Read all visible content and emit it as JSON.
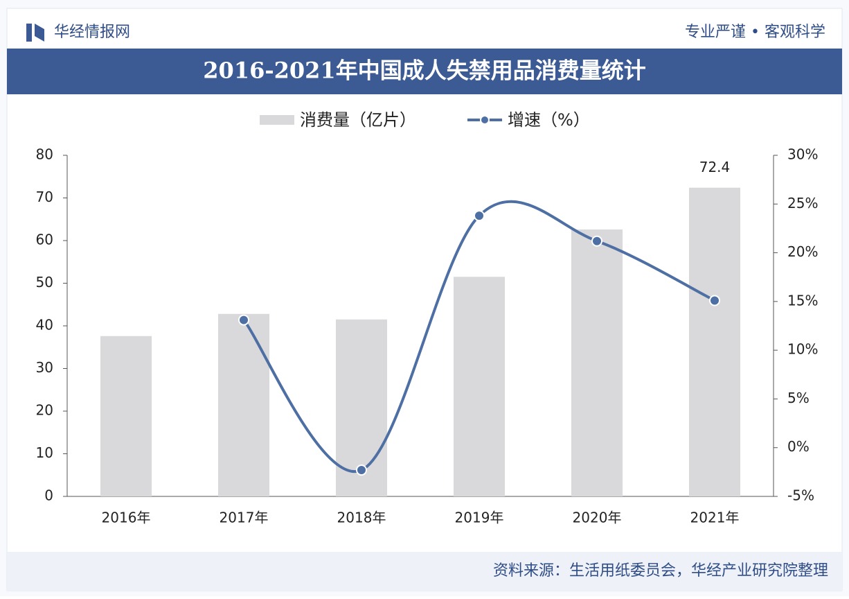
{
  "brand": "华经情报网",
  "slogan": "专业严谨 • 客观科学",
  "source": "资料来源：生活用纸委员会，华经产业研究院整理",
  "chart_data": {
    "type": "bar-line",
    "title": "2016-2021年中国成人失禁用品消费量统计",
    "categories": [
      "2016年",
      "2017年",
      "2018年",
      "2019年",
      "2020年",
      "2021年"
    ],
    "series": [
      {
        "name": "消费量（亿片）",
        "type": "bar",
        "color": "#d9d9db",
        "values": [
          37.6,
          42.8,
          41.5,
          51.5,
          62.6,
          72.4
        ],
        "value_labels": [
          null,
          null,
          null,
          null,
          null,
          "72.4"
        ]
      },
      {
        "name": "增速（%）",
        "type": "line",
        "axis": "y2",
        "color": "#4e6fa3",
        "values": [
          null,
          13.1,
          -2.3,
          23.8,
          21.2,
          15.1
        ]
      }
    ],
    "ylim": [
      0,
      80
    ],
    "yticks": [
      0,
      10,
      20,
      30,
      40,
      50,
      60,
      70,
      80
    ],
    "y2lim": [
      -5,
      30
    ],
    "y2ticks": [
      {
        "value": -5,
        "label": "-5%"
      },
      {
        "value": 0,
        "label": "0%"
      },
      {
        "value": 5,
        "label": "5%"
      },
      {
        "value": 10,
        "label": "10%"
      },
      {
        "value": 15,
        "label": "15%"
      },
      {
        "value": 20,
        "label": "20%"
      },
      {
        "value": 25,
        "label": "25%"
      },
      {
        "value": 30,
        "label": "30%"
      }
    ],
    "grid": false,
    "legend": "top"
  }
}
